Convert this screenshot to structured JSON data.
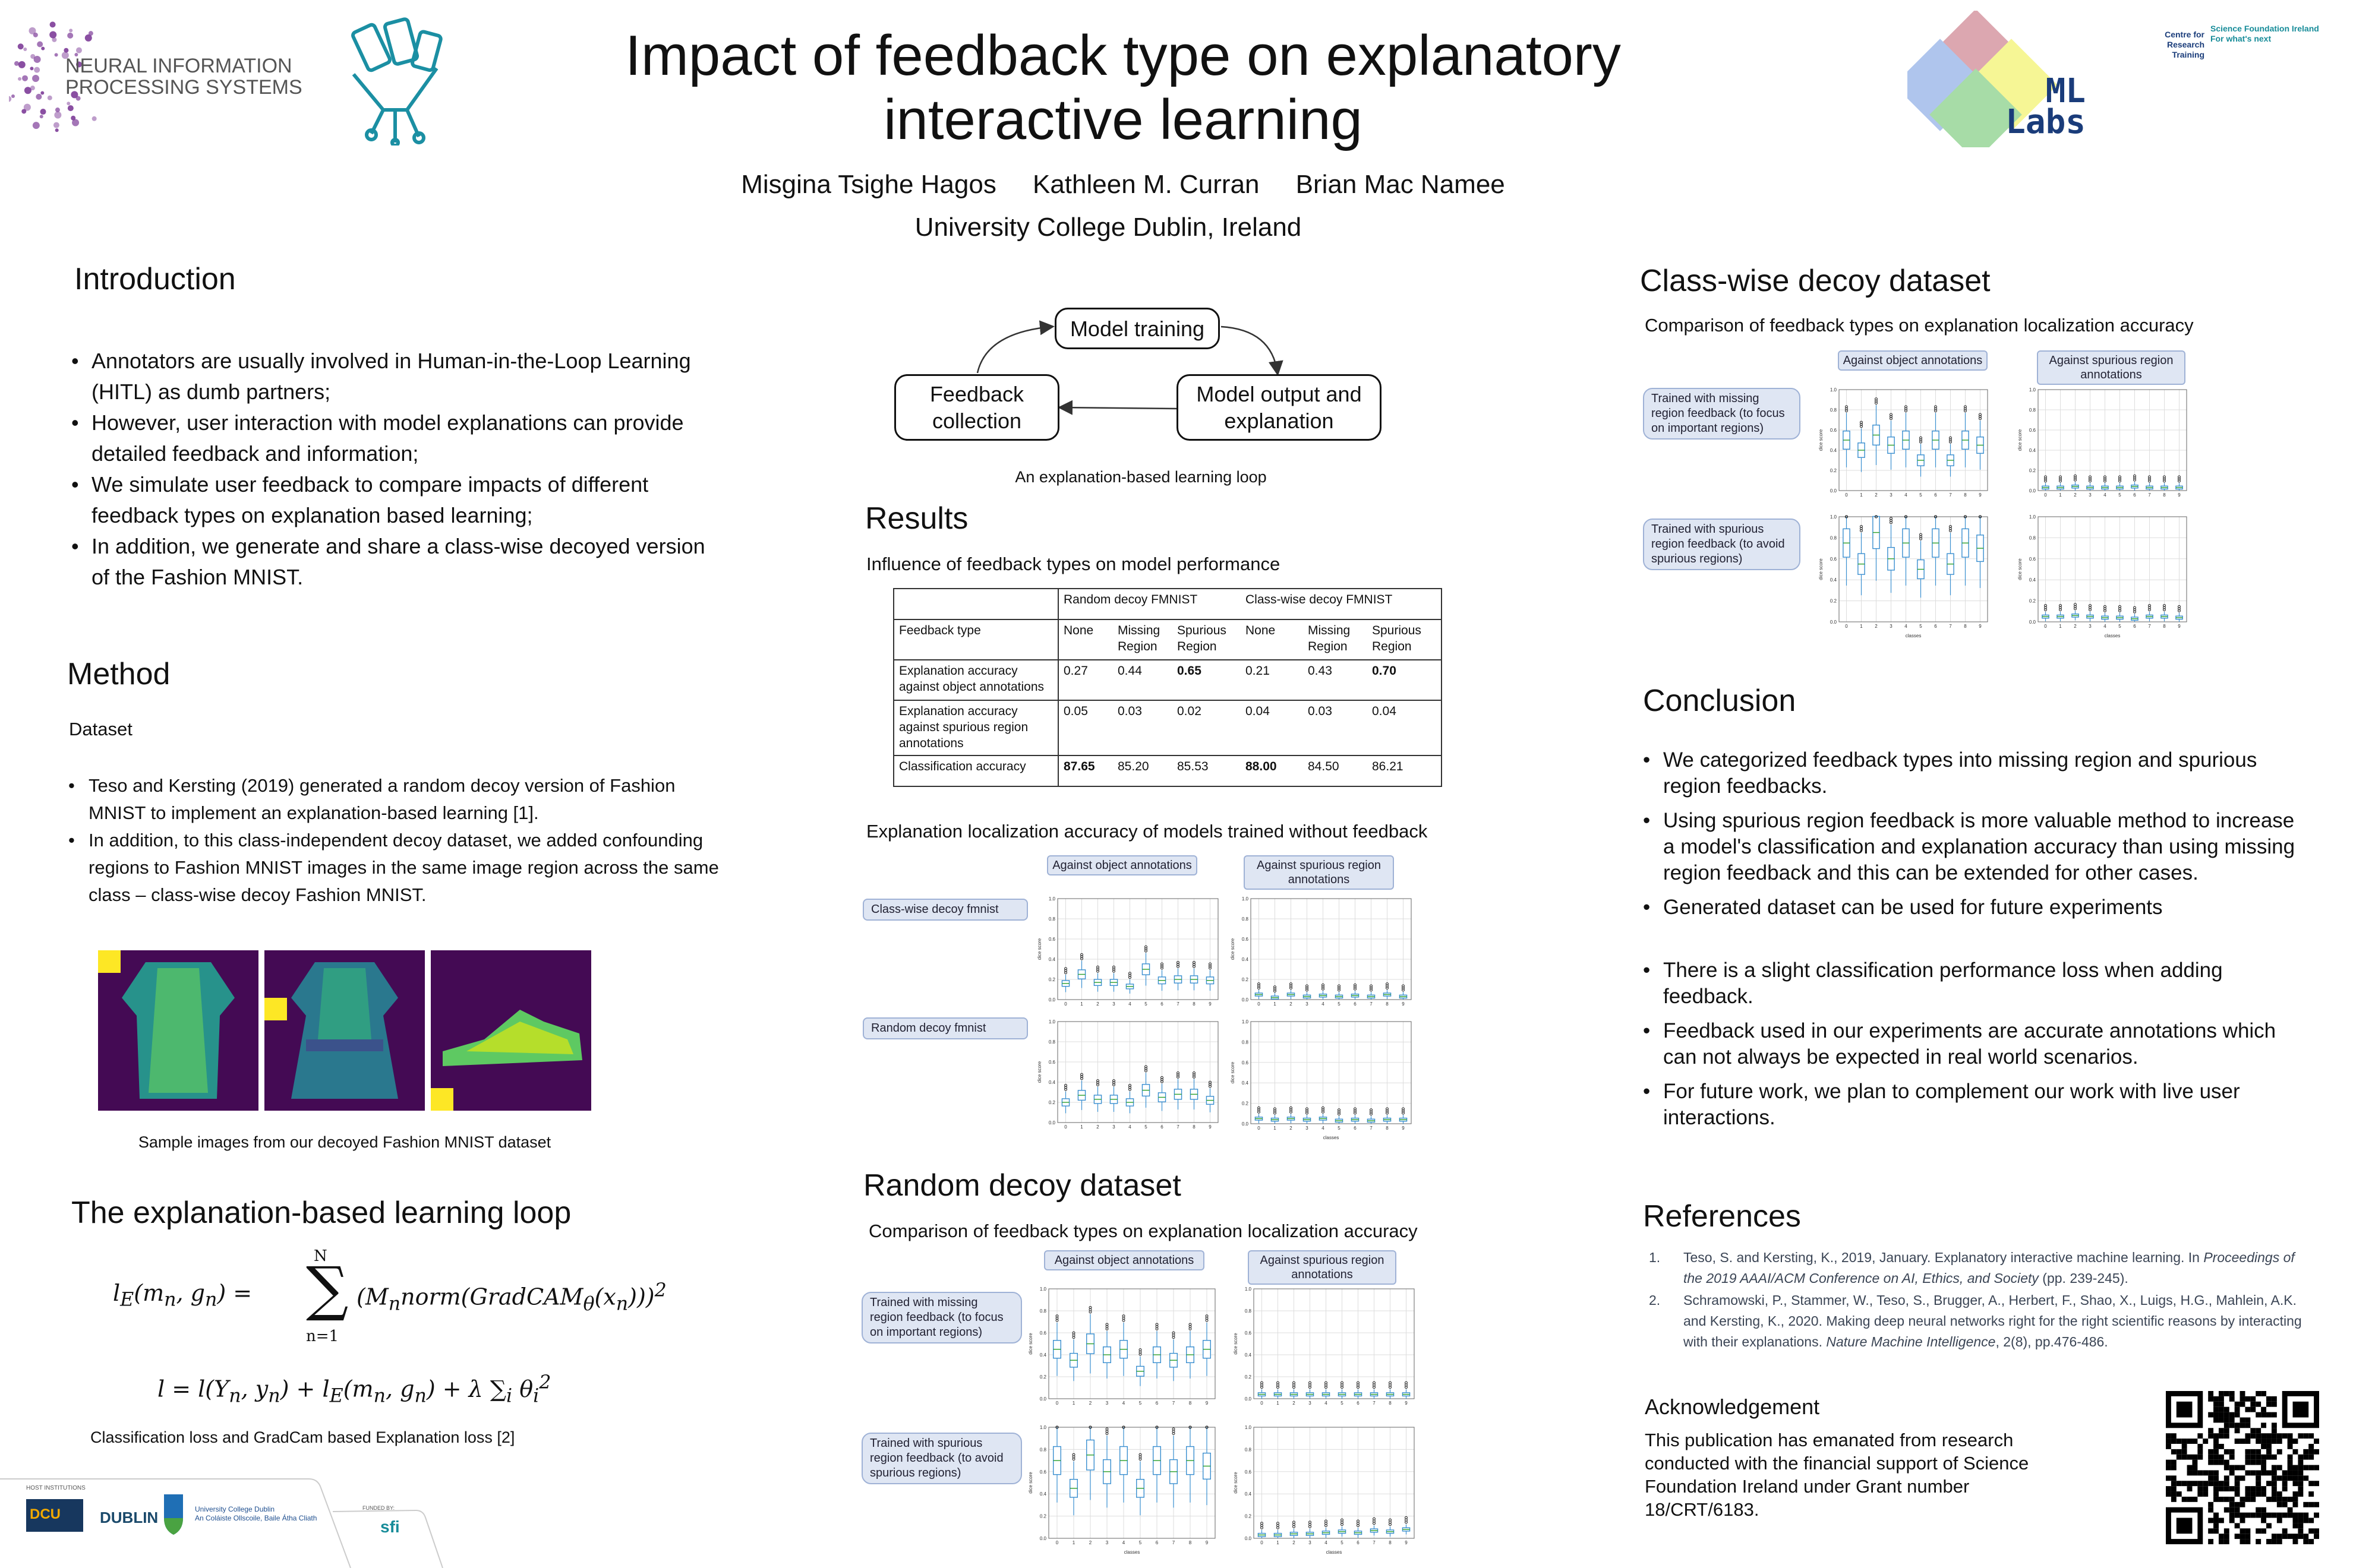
{
  "header": {
    "title_line1": "Impact of feedback type on explanatory",
    "title_line2": "interactive learning",
    "authors": [
      "Misgina Tsighe Hagos",
      "Kathleen M. Curran",
      "Brian Mac Namee"
    ],
    "affiliation": "University College Dublin, Ireland",
    "logo_neurips": "NEURAL INFORMATION PROCESSING SYSTEMS",
    "logo_mllabs": "ML Labs",
    "logo_crt": "Centre for Research Training",
    "logo_sfi": "Science Foundation Ireland For what's next"
  },
  "intro": {
    "heading": "Introduction",
    "bullets": [
      "Annotators are usually involved in Human-in-the-Loop Learning (HITL) as dumb partners;",
      "However, user interaction with model explanations can provide detailed feedback and information;",
      "We simulate user feedback to compare impacts of different feedback types on explanation based learning;",
      "In addition, we generate and share a class-wise decoyed version of the Fashion MNIST."
    ]
  },
  "method": {
    "heading": "Method",
    "subheading": "Dataset",
    "bullets": [
      "Teso and Kersting (2019) generated a random decoy version of Fashion MNIST to implement an explanation-based learning [1].",
      "In addition, to this class-independent decoy dataset, we added confounding regions to Fashion MNIST images in the same image region across the same class – class-wise decoy Fashion MNIST."
    ],
    "images_caption": "Sample images from our decoyed Fashion MNIST dataset"
  },
  "loop": {
    "heading": "The explanation-based learning loop",
    "caption": "Classification loss and GradCam based Explanation loss [2]"
  },
  "diagram": {
    "node_training": "Model training",
    "node_feedback": "Feedback collection",
    "node_output": "Model output and explanation",
    "caption": "An explanation-based learning loop"
  },
  "results": {
    "heading": "Results",
    "table_title": "Influence of feedback types on model performance",
    "table": {
      "groups": [
        "Random  decoy FMNIST",
        "Class-wise decoy FMNIST"
      ],
      "row_header": "Feedback type",
      "columns": [
        "None",
        "Missing Region",
        "Spurious Region",
        "None",
        "Missing Region",
        "Spurious Region"
      ],
      "rows": [
        {
          "label": "Explanation accuracy against object annotations",
          "values": [
            "0.27",
            "0.44",
            "0.65",
            "0.21",
            "0.43",
            "0.70"
          ],
          "bold": [
            2,
            5
          ]
        },
        {
          "label": "Explanation accuracy against spurious region annotations",
          "values": [
            "0.05",
            "0.03",
            "0.02",
            "0.04",
            "0.03",
            "0.04"
          ],
          "bold": []
        },
        {
          "label": "Classification accuracy",
          "values": [
            "87.65",
            "85.20",
            "85.53",
            "88.00",
            "84.50",
            "86.21"
          ],
          "bold": [
            0,
            3
          ]
        }
      ]
    },
    "loc_title": "Explanation  localization accuracy of models trained without feedback",
    "col_object": "Against object annotations",
    "col_spurious": "Against spurious region annotations",
    "row_classwise": "Class-wise decoy fmnist",
    "row_random": "Random  decoy fmnist"
  },
  "random_decoy": {
    "heading": "Random decoy dataset",
    "subtitle": "Comparison of feedback types on explanation localization accuracy",
    "col_object": "Against object annotations",
    "col_spurious": "Against spurious region annotations",
    "row_missing": "Trained with missing region feedback (to focus on important regions)",
    "row_spurious": "Trained with spurious region feedback (to avoid spurious regions)"
  },
  "classwise_decoy": {
    "heading": "Class-wise decoy dataset",
    "subtitle": "Comparison of feedback types on explanation localization accuracy",
    "col_object": "Against object annotations",
    "col_spurious": "Against spurious region annotations",
    "row_missing": "Trained with missing region feedback (to focus on important regions)",
    "row_spurious": "Trained with spurious region feedback (to avoid spurious regions)"
  },
  "conclusion": {
    "heading": "Conclusion",
    "bullets": [
      "We categorized feedback types into missing region and spurious region feedbacks.",
      "Using spurious region feedback is more valuable method to increase a model's classification and explanation accuracy than using missing region feedback and this can be extended for other cases.",
      "Generated dataset can be used for future experiments",
      "There is a slight classification performance loss when adding feedback.",
      "Feedback used in our experiments are accurate annotations which can not always be expected in real world scenarios.",
      "For future work, we plan  to complement our work with live user interactions."
    ]
  },
  "references": {
    "heading": "References",
    "items": [
      {
        "num": "1.",
        "text": "Teso, S. and Kersting, K., 2019, January. Explanatory interactive machine learning. In ",
        "italic": "Proceedings of the 2019 AAAI/ACM Conference on AI, Ethics, and Society",
        "tail": " (pp. 239-245)."
      },
      {
        "num": "2.",
        "text": "Schramowski, P., Stammer, W., Teso, S., Brugger, A., Herbert, F., Shao, X., Luigs, H.G., Mahlein, A.K. and Kersting, K., 2020. Making deep neural networks right for the right scientific reasons by interacting with their explanations. ",
        "italic": "Nature Machine Intelligence",
        "tail": ", 2(8), pp.476-486."
      }
    ]
  },
  "acknowledgement": {
    "heading": "Acknowledgement",
    "text": "This publication has emanated from research conducted with the financial support of Science Foundation Ireland under Grant number 18/CRT/6183."
  },
  "footer": {
    "host_label": "HOST INSTITUTIONS",
    "dcu": "DCU",
    "tudublin": "DUBLIN",
    "ucd_line1": "University College Dublin",
    "ucd_line2": "An Coláiste Ollscoile, Baile Átha Cliath",
    "funded_label": "FUNDED BY:",
    "sfi": "sfi"
  },
  "chart_data": [
    {
      "id": "nofb_cw_obj",
      "type": "box",
      "ylabel": "dice score",
      "xlabel": "",
      "ylim": [
        0,
        1
      ],
      "categories": [
        "0",
        "1",
        "2",
        "3",
        "4",
        "5",
        "6",
        "7",
        "8",
        "9"
      ],
      "medians": [
        0.16,
        0.25,
        0.17,
        0.17,
        0.13,
        0.3,
        0.19,
        0.2,
        0.2,
        0.19
      ]
    },
    {
      "id": "nofb_cw_spu",
      "type": "box",
      "ylabel": "dice score",
      "xlabel": "",
      "ylim": [
        0,
        1
      ],
      "categories": [
        "0",
        "1",
        "2",
        "3",
        "4",
        "5",
        "6",
        "7",
        "8",
        "9"
      ],
      "medians": [
        0.05,
        0.02,
        0.05,
        0.03,
        0.04,
        0.03,
        0.04,
        0.03,
        0.05,
        0.03
      ]
    },
    {
      "id": "nofb_rd_obj",
      "type": "box",
      "ylabel": "dice score",
      "xlabel": "",
      "ylim": [
        0,
        1
      ],
      "categories": [
        "0",
        "1",
        "2",
        "3",
        "4",
        "5",
        "6",
        "7",
        "8",
        "9"
      ],
      "medians": [
        0.2,
        0.27,
        0.23,
        0.23,
        0.2,
        0.32,
        0.25,
        0.28,
        0.28,
        0.22
      ]
    },
    {
      "id": "nofb_rd_spu",
      "type": "box",
      "ylabel": "dice score",
      "xlabel": "classes",
      "ylim": [
        0,
        1
      ],
      "categories": [
        "0",
        "1",
        "2",
        "3",
        "4",
        "5",
        "6",
        "7",
        "8",
        "9"
      ],
      "medians": [
        0.05,
        0.04,
        0.05,
        0.04,
        0.05,
        0.03,
        0.04,
        0.03,
        0.04,
        0.04
      ]
    },
    {
      "id": "rd_miss_obj",
      "type": "box",
      "ylabel": "dice score",
      "xlabel": "",
      "ylim": [
        0,
        1
      ],
      "categories": [
        "0",
        "1",
        "2",
        "3",
        "4",
        "5",
        "6",
        "7",
        "8",
        "9"
      ],
      "medians": [
        0.45,
        0.35,
        0.5,
        0.4,
        0.45,
        0.25,
        0.4,
        0.35,
        0.4,
        0.45
      ]
    },
    {
      "id": "rd_miss_spu",
      "type": "box",
      "ylabel": "dice score",
      "xlabel": "",
      "ylim": [
        0,
        1
      ],
      "categories": [
        "0",
        "1",
        "2",
        "3",
        "4",
        "5",
        "6",
        "7",
        "8",
        "9"
      ],
      "medians": [
        0.04,
        0.04,
        0.04,
        0.04,
        0.04,
        0.04,
        0.04,
        0.04,
        0.04,
        0.04
      ]
    },
    {
      "id": "rd_spu_obj",
      "type": "box",
      "ylabel": "dice score",
      "xlabel": "classes",
      "ylim": [
        0,
        1
      ],
      "categories": [
        "0",
        "1",
        "2",
        "3",
        "4",
        "5",
        "6",
        "7",
        "8",
        "9"
      ],
      "medians": [
        0.7,
        0.45,
        0.75,
        0.6,
        0.7,
        0.45,
        0.7,
        0.6,
        0.7,
        0.65
      ]
    },
    {
      "id": "rd_spu_spu",
      "type": "box",
      "ylabel": "dice score",
      "xlabel": "classes",
      "ylim": [
        0,
        1
      ],
      "categories": [
        "0",
        "1",
        "2",
        "3",
        "4",
        "5",
        "6",
        "7",
        "8",
        "9"
      ],
      "medians": [
        0.03,
        0.03,
        0.04,
        0.04,
        0.05,
        0.06,
        0.05,
        0.07,
        0.06,
        0.08
      ]
    },
    {
      "id": "cw_miss_obj",
      "type": "box",
      "ylabel": "dice score",
      "xlabel": "",
      "ylim": [
        0,
        1
      ],
      "categories": [
        "0",
        "1",
        "2",
        "3",
        "4",
        "5",
        "6",
        "7",
        "8",
        "9"
      ],
      "medians": [
        0.5,
        0.4,
        0.55,
        0.45,
        0.5,
        0.3,
        0.5,
        0.3,
        0.5,
        0.45
      ]
    },
    {
      "id": "cw_miss_spu",
      "type": "box",
      "ylabel": "dice score",
      "xlabel": "",
      "ylim": [
        0,
        1
      ],
      "categories": [
        "0",
        "1",
        "2",
        "3",
        "4",
        "5",
        "6",
        "7",
        "8",
        "9"
      ],
      "medians": [
        0.03,
        0.03,
        0.04,
        0.03,
        0.03,
        0.03,
        0.04,
        0.03,
        0.03,
        0.03
      ]
    },
    {
      "id": "cw_spu_obj",
      "type": "box",
      "ylabel": "dice score",
      "xlabel": "classes",
      "ylim": [
        0,
        1
      ],
      "categories": [
        "0",
        "1",
        "2",
        "3",
        "4",
        "5",
        "6",
        "7",
        "8",
        "9"
      ],
      "medians": [
        0.75,
        0.55,
        0.85,
        0.6,
        0.75,
        0.5,
        0.75,
        0.55,
        0.75,
        0.7
      ]
    },
    {
      "id": "cw_spu_spu",
      "type": "box",
      "ylabel": "dice score",
      "xlabel": "classes",
      "ylim": [
        0,
        1
      ],
      "categories": [
        "0",
        "1",
        "2",
        "3",
        "4",
        "5",
        "6",
        "7",
        "8",
        "9"
      ],
      "medians": [
        0.05,
        0.05,
        0.06,
        0.05,
        0.04,
        0.04,
        0.03,
        0.05,
        0.05,
        0.04
      ]
    }
  ],
  "colors": {
    "box": "#3a8fd0",
    "median": "#2ca02c",
    "label_bg": "#dfe6f3",
    "label_border": "#9fb2d6",
    "image_bg": "#440a54",
    "decoy": "#fde725"
  }
}
